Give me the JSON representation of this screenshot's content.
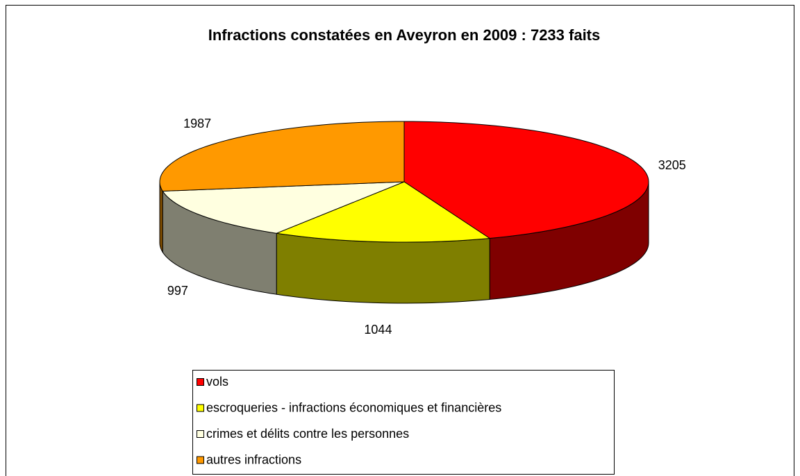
{
  "chart_data": {
    "type": "pie",
    "title": "Infractions constatées en Aveyron en 2009 : 7233 faits",
    "categories": [
      "vols",
      "escroqueries - infractions économiques et financières",
      "crimes et délits contre les personnes",
      "autres infractions"
    ],
    "values": [
      3205,
      1044,
      997,
      1987
    ],
    "colors": [
      "#ff0000",
      "#ffff00",
      "#ffffe0",
      "#ff9900"
    ]
  }
}
